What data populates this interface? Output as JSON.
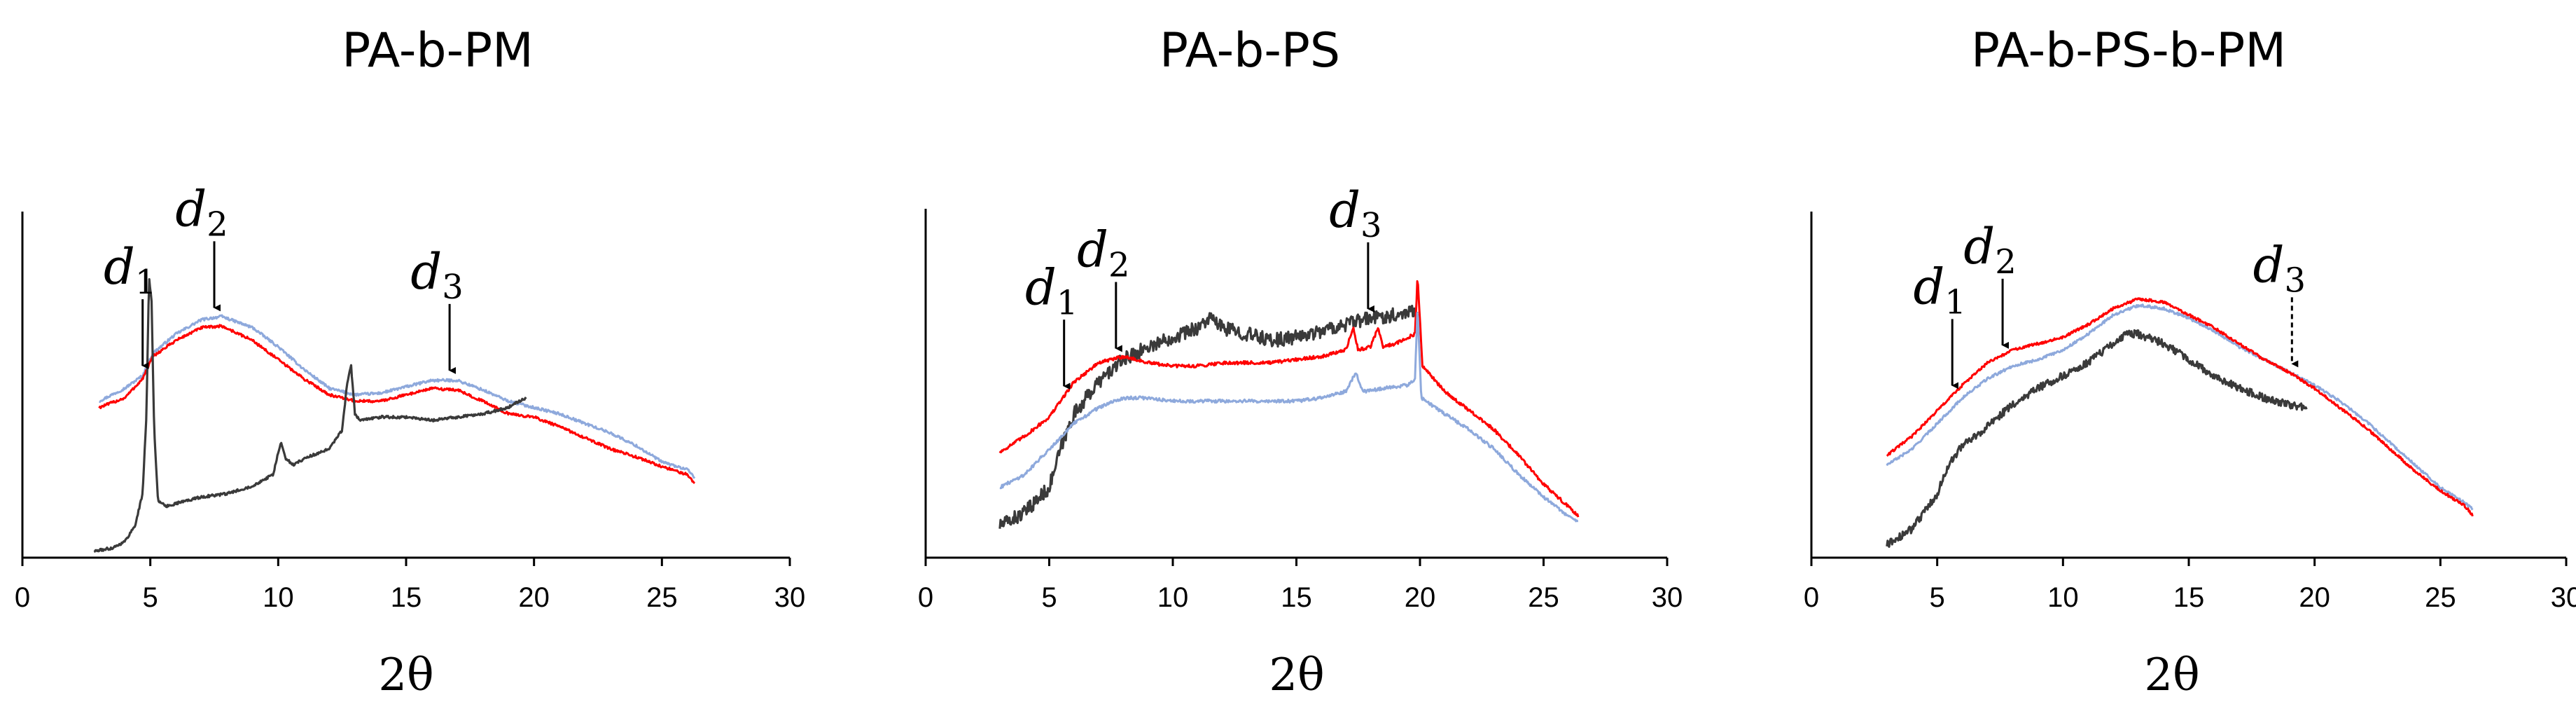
{
  "colors": {
    "black": "#3a3a3a",
    "red": "#ff0000",
    "blue": "#8ea9dc",
    "axis": "#000000"
  },
  "chart_data": [
    {
      "type": "line",
      "title": "PA-b-PM",
      "xlabel": "2θ",
      "ylabel": "",
      "xlim": [
        0,
        30
      ],
      "x_ticks": [
        "0",
        "5",
        "10",
        "15",
        "20",
        "25",
        "30"
      ],
      "annotations": [
        {
          "name": "d-1",
          "base": "d",
          "sub": "1",
          "x": 4.7,
          "style": "solid"
        },
        {
          "name": "d-2",
          "base": "d",
          "sub": "2",
          "x": 7.5,
          "style": "solid"
        },
        {
          "name": "d-3",
          "base": "d",
          "sub": "3",
          "x": 16.7,
          "style": "solid"
        }
      ],
      "series": [
        {
          "name": "blue",
          "color": "#8ea9dc",
          "noise": 0.004,
          "points": [
            [
              3,
              0.49
            ],
            [
              4,
              0.53
            ],
            [
              4.7,
              0.57
            ],
            [
              5.1,
              0.64
            ],
            [
              6,
              0.7
            ],
            [
              7,
              0.745
            ],
            [
              7.8,
              0.755
            ],
            [
              9,
              0.72
            ],
            [
              10,
              0.66
            ],
            [
              11,
              0.59
            ],
            [
              12,
              0.53
            ],
            [
              13,
              0.51
            ],
            [
              14,
              0.515
            ],
            [
              15,
              0.535
            ],
            [
              16,
              0.555
            ],
            [
              17,
              0.555
            ],
            [
              18,
              0.525
            ],
            [
              19,
              0.49
            ],
            [
              20,
              0.47
            ],
            [
              21,
              0.45
            ],
            [
              22,
              0.42
            ],
            [
              23,
              0.39
            ],
            [
              24,
              0.35
            ],
            [
              25,
              0.3
            ],
            [
              26,
              0.275
            ],
            [
              26.3,
              0.25
            ]
          ]
        },
        {
          "name": "red",
          "color": "#ff0000",
          "noise": 0.004,
          "points": [
            [
              3,
              0.47
            ],
            [
              4,
              0.5
            ],
            [
              4.7,
              0.56
            ],
            [
              5.1,
              0.63
            ],
            [
              6,
              0.68
            ],
            [
              7,
              0.72
            ],
            [
              7.8,
              0.725
            ],
            [
              9,
              0.68
            ],
            [
              10,
              0.62
            ],
            [
              11,
              0.56
            ],
            [
              12,
              0.51
            ],
            [
              13,
              0.49
            ],
            [
              14,
              0.49
            ],
            [
              15,
              0.51
            ],
            [
              16,
              0.53
            ],
            [
              17,
              0.525
            ],
            [
              18,
              0.49
            ],
            [
              19,
              0.45
            ],
            [
              20,
              0.44
            ],
            [
              21,
              0.41
            ],
            [
              22,
              0.375
            ],
            [
              23,
              0.34
            ],
            [
              24,
              0.315
            ],
            [
              25,
              0.285
            ],
            [
              26,
              0.26
            ],
            [
              26.3,
              0.23
            ]
          ]
        },
        {
          "name": "black",
          "color": "#3a3a3a",
          "noise": 0.004,
          "points": [
            [
              2.8,
              0.02
            ],
            [
              3.5,
              0.03
            ],
            [
              4,
              0.05
            ],
            [
              4.4,
              0.1
            ],
            [
              4.7,
              0.2
            ],
            [
              4.85,
              0.45
            ],
            [
              4.95,
              0.88
            ],
            [
              5.05,
              0.8
            ],
            [
              5.15,
              0.4
            ],
            [
              5.3,
              0.18
            ],
            [
              5.6,
              0.16
            ],
            [
              6,
              0.17
            ],
            [
              7,
              0.19
            ],
            [
              8,
              0.2
            ],
            [
              9,
              0.225
            ],
            [
              9.8,
              0.26
            ],
            [
              10.1,
              0.36
            ],
            [
              10.3,
              0.31
            ],
            [
              10.6,
              0.29
            ],
            [
              11,
              0.31
            ],
            [
              12,
              0.34
            ],
            [
              12.5,
              0.4
            ],
            [
              12.7,
              0.55
            ],
            [
              12.85,
              0.6
            ],
            [
              13,
              0.45
            ],
            [
              13.2,
              0.43
            ],
            [
              14,
              0.44
            ],
            [
              15,
              0.44
            ],
            [
              16,
              0.43
            ],
            [
              17,
              0.44
            ],
            [
              18,
              0.45
            ],
            [
              19,
              0.47
            ],
            [
              19.4,
              0.49
            ],
            [
              19.7,
              0.5
            ]
          ]
        }
      ]
    },
    {
      "type": "line",
      "title": "PA-b-PS",
      "xlabel": "2θ",
      "ylabel": "",
      "xlim": [
        0,
        30
      ],
      "x_ticks": [
        "0",
        "5",
        "10",
        "15",
        "20",
        "25",
        "30"
      ],
      "annotations": [
        {
          "name": "d-1",
          "base": "d",
          "sub": "1",
          "x": 5.6,
          "style": "solid"
        },
        {
          "name": "d-2",
          "base": "d",
          "sub": "2",
          "x": 7.7,
          "style": "solid"
        },
        {
          "name": "d-3",
          "base": "d",
          "sub": "3",
          "x": 17.9,
          "style": "solid"
        }
      ],
      "series": [
        {
          "name": "black",
          "color": "#3a3a3a",
          "noise": 0.022,
          "points": [
            [
              3,
              0.1
            ],
            [
              4,
              0.14
            ],
            [
              5,
              0.22
            ],
            [
              5.5,
              0.35
            ],
            [
              6,
              0.45
            ],
            [
              7,
              0.55
            ],
            [
              8,
              0.62
            ],
            [
              9,
              0.66
            ],
            [
              10,
              0.69
            ],
            [
              11,
              0.72
            ],
            [
              11.5,
              0.75
            ],
            [
              12,
              0.72
            ],
            [
              13,
              0.7
            ],
            [
              14,
              0.68
            ],
            [
              15,
              0.69
            ],
            [
              16,
              0.71
            ],
            [
              17,
              0.73
            ],
            [
              18,
              0.75
            ],
            [
              19,
              0.76
            ],
            [
              19.9,
              0.78
            ]
          ]
        },
        {
          "name": "red",
          "color": "#ff0000",
          "noise": 0.005,
          "points": [
            [
              3,
              0.33
            ],
            [
              4,
              0.38
            ],
            [
              5,
              0.44
            ],
            [
              6,
              0.55
            ],
            [
              7,
              0.61
            ],
            [
              8,
              0.63
            ],
            [
              9,
              0.61
            ],
            [
              10,
              0.6
            ],
            [
              11,
              0.6
            ],
            [
              12,
              0.61
            ],
            [
              13,
              0.61
            ],
            [
              14,
              0.61
            ],
            [
              15,
              0.62
            ],
            [
              16,
              0.63
            ],
            [
              17,
              0.65
            ],
            [
              17.3,
              0.72
            ],
            [
              17.5,
              0.65
            ],
            [
              18,
              0.66
            ],
            [
              18.3,
              0.72
            ],
            [
              18.5,
              0.66
            ],
            [
              19,
              0.67
            ],
            [
              19.8,
              0.7
            ],
            [
              19.9,
              0.88
            ],
            [
              20.1,
              0.6
            ],
            [
              21,
              0.52
            ],
            [
              22,
              0.46
            ],
            [
              23,
              0.4
            ],
            [
              24,
              0.32
            ],
            [
              25,
              0.23
            ],
            [
              26,
              0.16
            ],
            [
              26.4,
              0.13
            ]
          ]
        },
        {
          "name": "blue",
          "color": "#8ea9dc",
          "noise": 0.005,
          "points": [
            [
              3,
              0.22
            ],
            [
              4,
              0.26
            ],
            [
              5,
              0.34
            ],
            [
              6,
              0.42
            ],
            [
              7,
              0.47
            ],
            [
              8,
              0.5
            ],
            [
              9,
              0.5
            ],
            [
              10,
              0.49
            ],
            [
              11,
              0.49
            ],
            [
              12,
              0.49
            ],
            [
              13,
              0.49
            ],
            [
              14,
              0.49
            ],
            [
              15,
              0.49
            ],
            [
              16,
              0.5
            ],
            [
              17,
              0.52
            ],
            [
              17.4,
              0.58
            ],
            [
              17.7,
              0.52
            ],
            [
              18.5,
              0.53
            ],
            [
              19.5,
              0.54
            ],
            [
              19.8,
              0.56
            ],
            [
              19.9,
              0.79
            ],
            [
              20.05,
              0.5
            ],
            [
              21,
              0.45
            ],
            [
              22,
              0.4
            ],
            [
              23,
              0.34
            ],
            [
              24,
              0.26
            ],
            [
              25,
              0.19
            ],
            [
              26,
              0.13
            ],
            [
              26.4,
              0.11
            ]
          ]
        }
      ]
    },
    {
      "type": "line",
      "title": "PA-b-PS-b-PM",
      "xlabel": "2θ",
      "ylabel": "",
      "xlim": [
        0,
        30
      ],
      "x_ticks": [
        "0",
        "5",
        "10",
        "15",
        "20",
        "25",
        "30"
      ],
      "annotations": [
        {
          "name": "d-1",
          "base": "d",
          "sub": "1",
          "x": 5.6,
          "style": "solid"
        },
        {
          "name": "d-2",
          "base": "d",
          "sub": "2",
          "x": 7.6,
          "style": "solid"
        },
        {
          "name": "d-3",
          "base": "d",
          "sub": "3",
          "x": 19.1,
          "style": "dashed"
        }
      ],
      "series": [
        {
          "name": "blue",
          "color": "#8ea9dc",
          "noise": 0.004,
          "points": [
            [
              3,
              0.29
            ],
            [
              4,
              0.34
            ],
            [
              5,
              0.42
            ],
            [
              6,
              0.5
            ],
            [
              7,
              0.56
            ],
            [
              8,
              0.6
            ],
            [
              9,
              0.62
            ],
            [
              10,
              0.65
            ],
            [
              11,
              0.7
            ],
            [
              12,
              0.76
            ],
            [
              13,
              0.79
            ],
            [
              14,
              0.78
            ],
            [
              15,
              0.75
            ],
            [
              16,
              0.71
            ],
            [
              17,
              0.66
            ],
            [
              18,
              0.62
            ],
            [
              19,
              0.58
            ],
            [
              20,
              0.54
            ],
            [
              21,
              0.49
            ],
            [
              22,
              0.43
            ],
            [
              23,
              0.36
            ],
            [
              24,
              0.29
            ],
            [
              25,
              0.22
            ],
            [
              26,
              0.17
            ],
            [
              26.3,
              0.15
            ]
          ]
        },
        {
          "name": "red",
          "color": "#ff0000",
          "noise": 0.004,
          "points": [
            [
              3,
              0.32
            ],
            [
              4,
              0.38
            ],
            [
              5,
              0.46
            ],
            [
              6,
              0.54
            ],
            [
              7,
              0.61
            ],
            [
              8,
              0.65
            ],
            [
              9,
              0.67
            ],
            [
              10,
              0.69
            ],
            [
              11,
              0.73
            ],
            [
              12,
              0.78
            ],
            [
              13,
              0.81
            ],
            [
              14,
              0.8
            ],
            [
              15,
              0.76
            ],
            [
              16,
              0.72
            ],
            [
              17,
              0.67
            ],
            [
              18,
              0.62
            ],
            [
              19,
              0.58
            ],
            [
              20,
              0.53
            ],
            [
              21,
              0.47
            ],
            [
              22,
              0.41
            ],
            [
              23,
              0.34
            ],
            [
              24,
              0.27
            ],
            [
              25,
              0.21
            ],
            [
              26,
              0.16
            ],
            [
              26.3,
              0.13
            ]
          ]
        },
        {
          "name": "black",
          "color": "#3a3a3a",
          "noise": 0.012,
          "points": [
            [
              3,
              0.04
            ],
            [
              4,
              0.09
            ],
            [
              5,
              0.2
            ],
            [
              5.5,
              0.3
            ],
            [
              6,
              0.35
            ],
            [
              7,
              0.41
            ],
            [
              8,
              0.48
            ],
            [
              9,
              0.53
            ],
            [
              10,
              0.57
            ],
            [
              11,
              0.61
            ],
            [
              12,
              0.67
            ],
            [
              12.5,
              0.7
            ],
            [
              13,
              0.7
            ],
            [
              14,
              0.67
            ],
            [
              15,
              0.62
            ],
            [
              16,
              0.57
            ],
            [
              17,
              0.53
            ],
            [
              18,
              0.5
            ],
            [
              19,
              0.48
            ],
            [
              19.7,
              0.47
            ]
          ]
        }
      ]
    }
  ]
}
